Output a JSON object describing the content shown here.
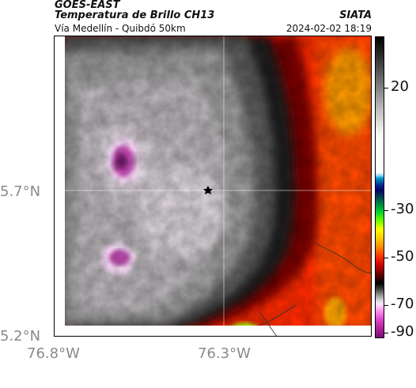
{
  "header": {
    "satellite": "GOES-EAST",
    "product": "Temperatura de Brillo CH13",
    "organization": "SIATA",
    "region": "Vía Medellín - Quibdó 50km",
    "datetime": "2024-02-02 18:19"
  },
  "axes": {
    "lat_labels": [
      "5.7°N",
      "5.2°N"
    ],
    "lon_labels": [
      "76.8°W",
      "76.3°W"
    ]
  },
  "colorbar": {
    "tick_labels": [
      "20",
      "-30",
      "-50",
      "-70",
      "-90"
    ],
    "colors": {
      "warm_hot": "#ff2a00",
      "warm_dark": "#7a0000",
      "cold_gray": "#9a9a9a",
      "cold_light": "#e6e0e6",
      "very_cold": "#c04ab0"
    }
  },
  "map": {
    "marker": "star-marker",
    "gridlines": true
  }
}
